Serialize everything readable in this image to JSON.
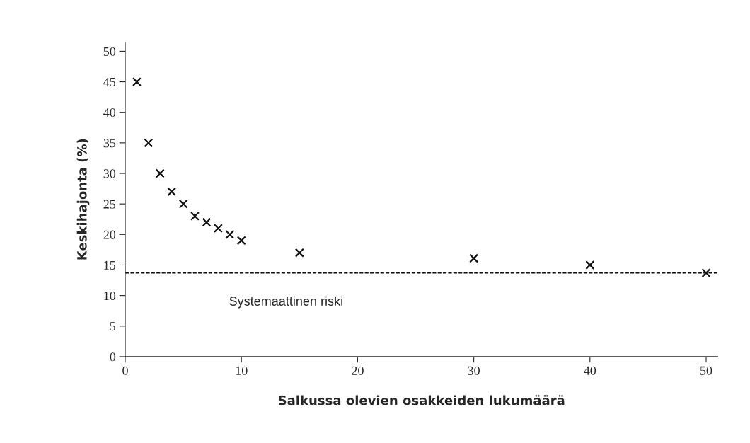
{
  "chart_data": {
    "type": "scatter",
    "xlabel": "Salkussa olevien osakkeiden lukumäärä",
    "ylabel": "Keskihajonta (%)",
    "x": [
      1,
      2,
      3,
      4,
      5,
      6,
      7,
      8,
      9,
      10,
      15,
      30,
      40,
      50
    ],
    "values": [
      45,
      35,
      30,
      27,
      25,
      23,
      22,
      21,
      20,
      19,
      17,
      16.1,
      15,
      13.7
    ],
    "color": "#111111",
    "marker": "cross",
    "ref_lines": [
      {
        "axis": "y",
        "value": 13.7,
        "label": "Systemaattinen riski",
        "line_style": "dashed",
        "color": "#111111"
      }
    ],
    "xlim": [
      0,
      51
    ],
    "ylim": [
      0,
      51.5
    ],
    "xticks": [
      0,
      10,
      20,
      30,
      40,
      50
    ],
    "yticks": [
      0,
      5,
      10,
      15,
      20,
      25,
      30,
      35,
      40,
      45,
      50
    ],
    "grid": false,
    "legend": false
  }
}
